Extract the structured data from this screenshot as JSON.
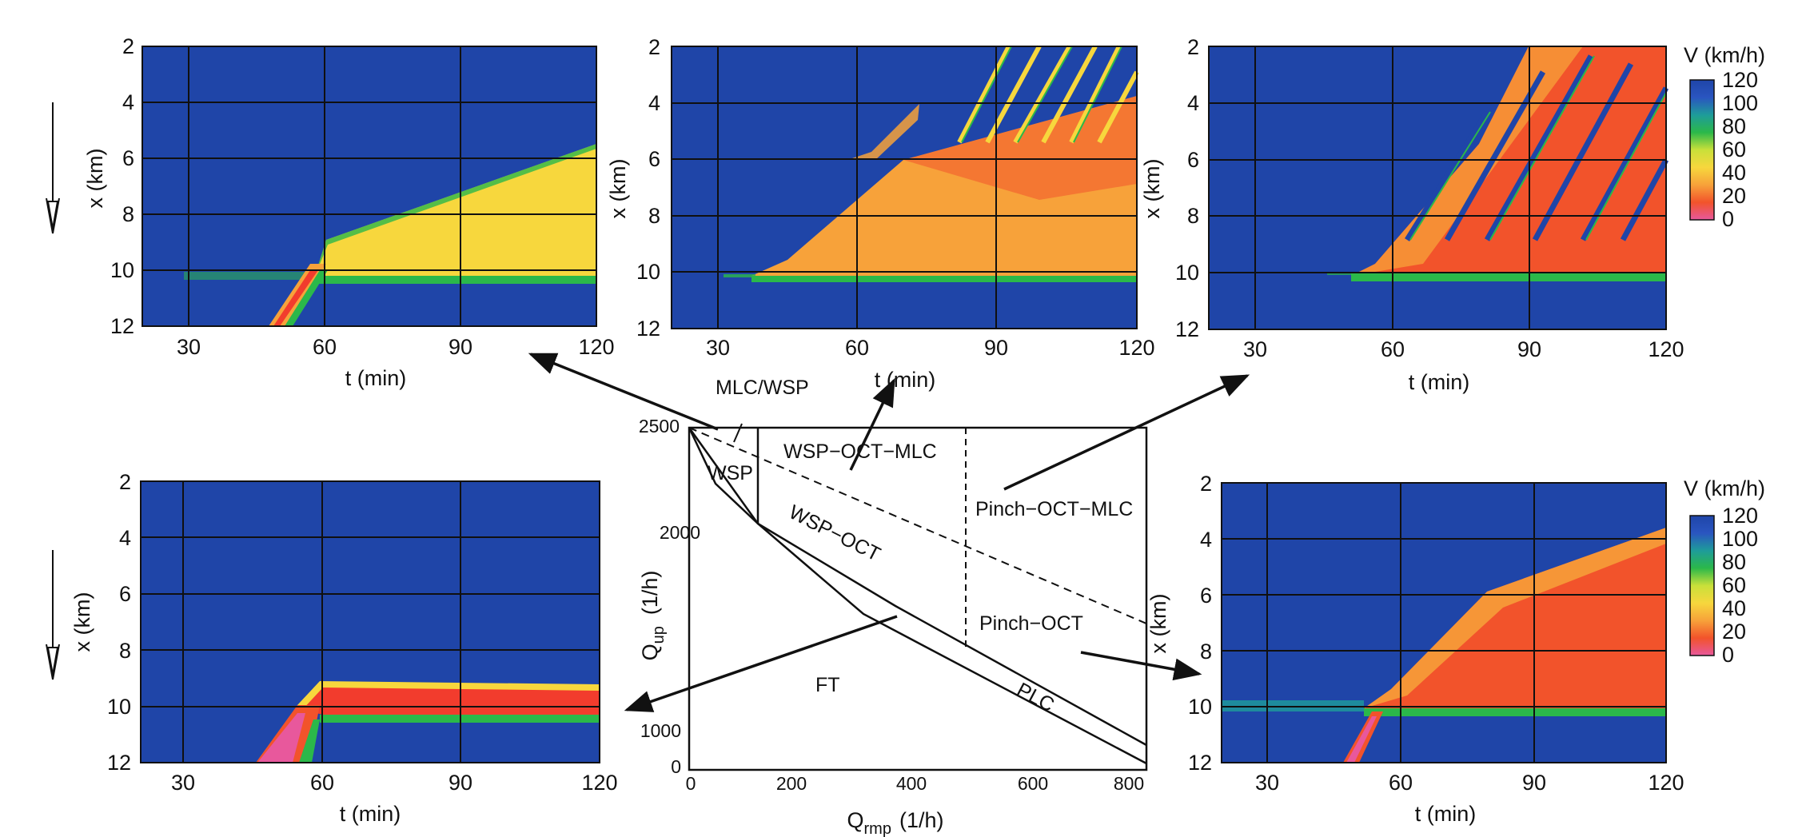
{
  "colors": {
    "free_flow": "#1f45a8",
    "synchronized": "#f7d73d",
    "jam": "#f23c2d",
    "grid": "#101010",
    "arrow": "#111111"
  },
  "colorbar": {
    "title": "V (km/h)",
    "ticks": [
      "120",
      "100",
      "80",
      "60",
      "40",
      "20",
      "0"
    ],
    "stops": [
      "#1f45a8",
      "#2a55c0",
      "#1e9c9a",
      "#2bb84a",
      "#c9e03a",
      "#f7d73d",
      "#f7a23a",
      "#f2532b",
      "#e8589c"
    ]
  },
  "panels": [
    {
      "id": "top-left",
      "pattern": "MLC/WSP",
      "xlabel": "t (min)",
      "ylabel": "x (km)",
      "xticks": [
        "30",
        "60",
        "90",
        "120"
      ],
      "yticks": [
        "2",
        "4",
        "6",
        "8",
        "10",
        "12"
      ],
      "show_colorbar": false,
      "show_direction_arrow": true
    },
    {
      "id": "top-middle",
      "pattern": "WSP-OCT-MLC",
      "xlabel": "t (min)",
      "ylabel": "x (km)",
      "xticks": [
        "30",
        "60",
        "90",
        "120"
      ],
      "yticks": [
        "2",
        "4",
        "6",
        "8",
        "10",
        "12"
      ],
      "show_colorbar": false,
      "show_direction_arrow": false
    },
    {
      "id": "top-right",
      "pattern": "Pinch-OCT-MLC",
      "xlabel": "t (min)",
      "ylabel": "x (km)",
      "xticks": [
        "30",
        "60",
        "90",
        "120"
      ],
      "yticks": [
        "2",
        "4",
        "6",
        "8",
        "10",
        "12"
      ],
      "show_colorbar": true,
      "show_direction_arrow": false
    },
    {
      "id": "bottom-left",
      "pattern": "PLC",
      "xlabel": "t (min)",
      "ylabel": "x (km)",
      "xticks": [
        "30",
        "60",
        "90",
        "120"
      ],
      "yticks": [
        "2",
        "4",
        "6",
        "8",
        "10",
        "12"
      ],
      "show_colorbar": false,
      "show_direction_arrow": true
    },
    {
      "id": "bottom-right",
      "pattern": "Pinch-OCT",
      "xlabel": "t (min)",
      "ylabel": "x (km)",
      "xticks": [
        "30",
        "60",
        "90",
        "120"
      ],
      "yticks": [
        "2",
        "4",
        "6",
        "8",
        "10",
        "12"
      ],
      "show_colorbar": true,
      "show_direction_arrow": false
    }
  ],
  "phase_diagram": {
    "xlabel_main": "Q",
    "xlabel_sub": "rmp",
    "xlabel_unit": "(1/h)",
    "ylabel_main": "Q",
    "ylabel_sub": "up",
    "ylabel_unit": "(1/h)",
    "xticks": [
      "0",
      "200",
      "400",
      "600",
      "800"
    ],
    "yticks": [
      "0",
      "1000",
      "2000",
      "2500"
    ],
    "regions": {
      "mlc_wsp": "MLC/WSP",
      "wsp": "WSP",
      "wsp_oct_mlc": "WSP−OCT−MLC",
      "wsp_oct": "WSP−OCT",
      "pinch_oct_mlc": "Pinch−OCT−MLC",
      "pinch_oct": "Pinch−OCT",
      "ft": "FT",
      "plc": "PLC"
    }
  }
}
